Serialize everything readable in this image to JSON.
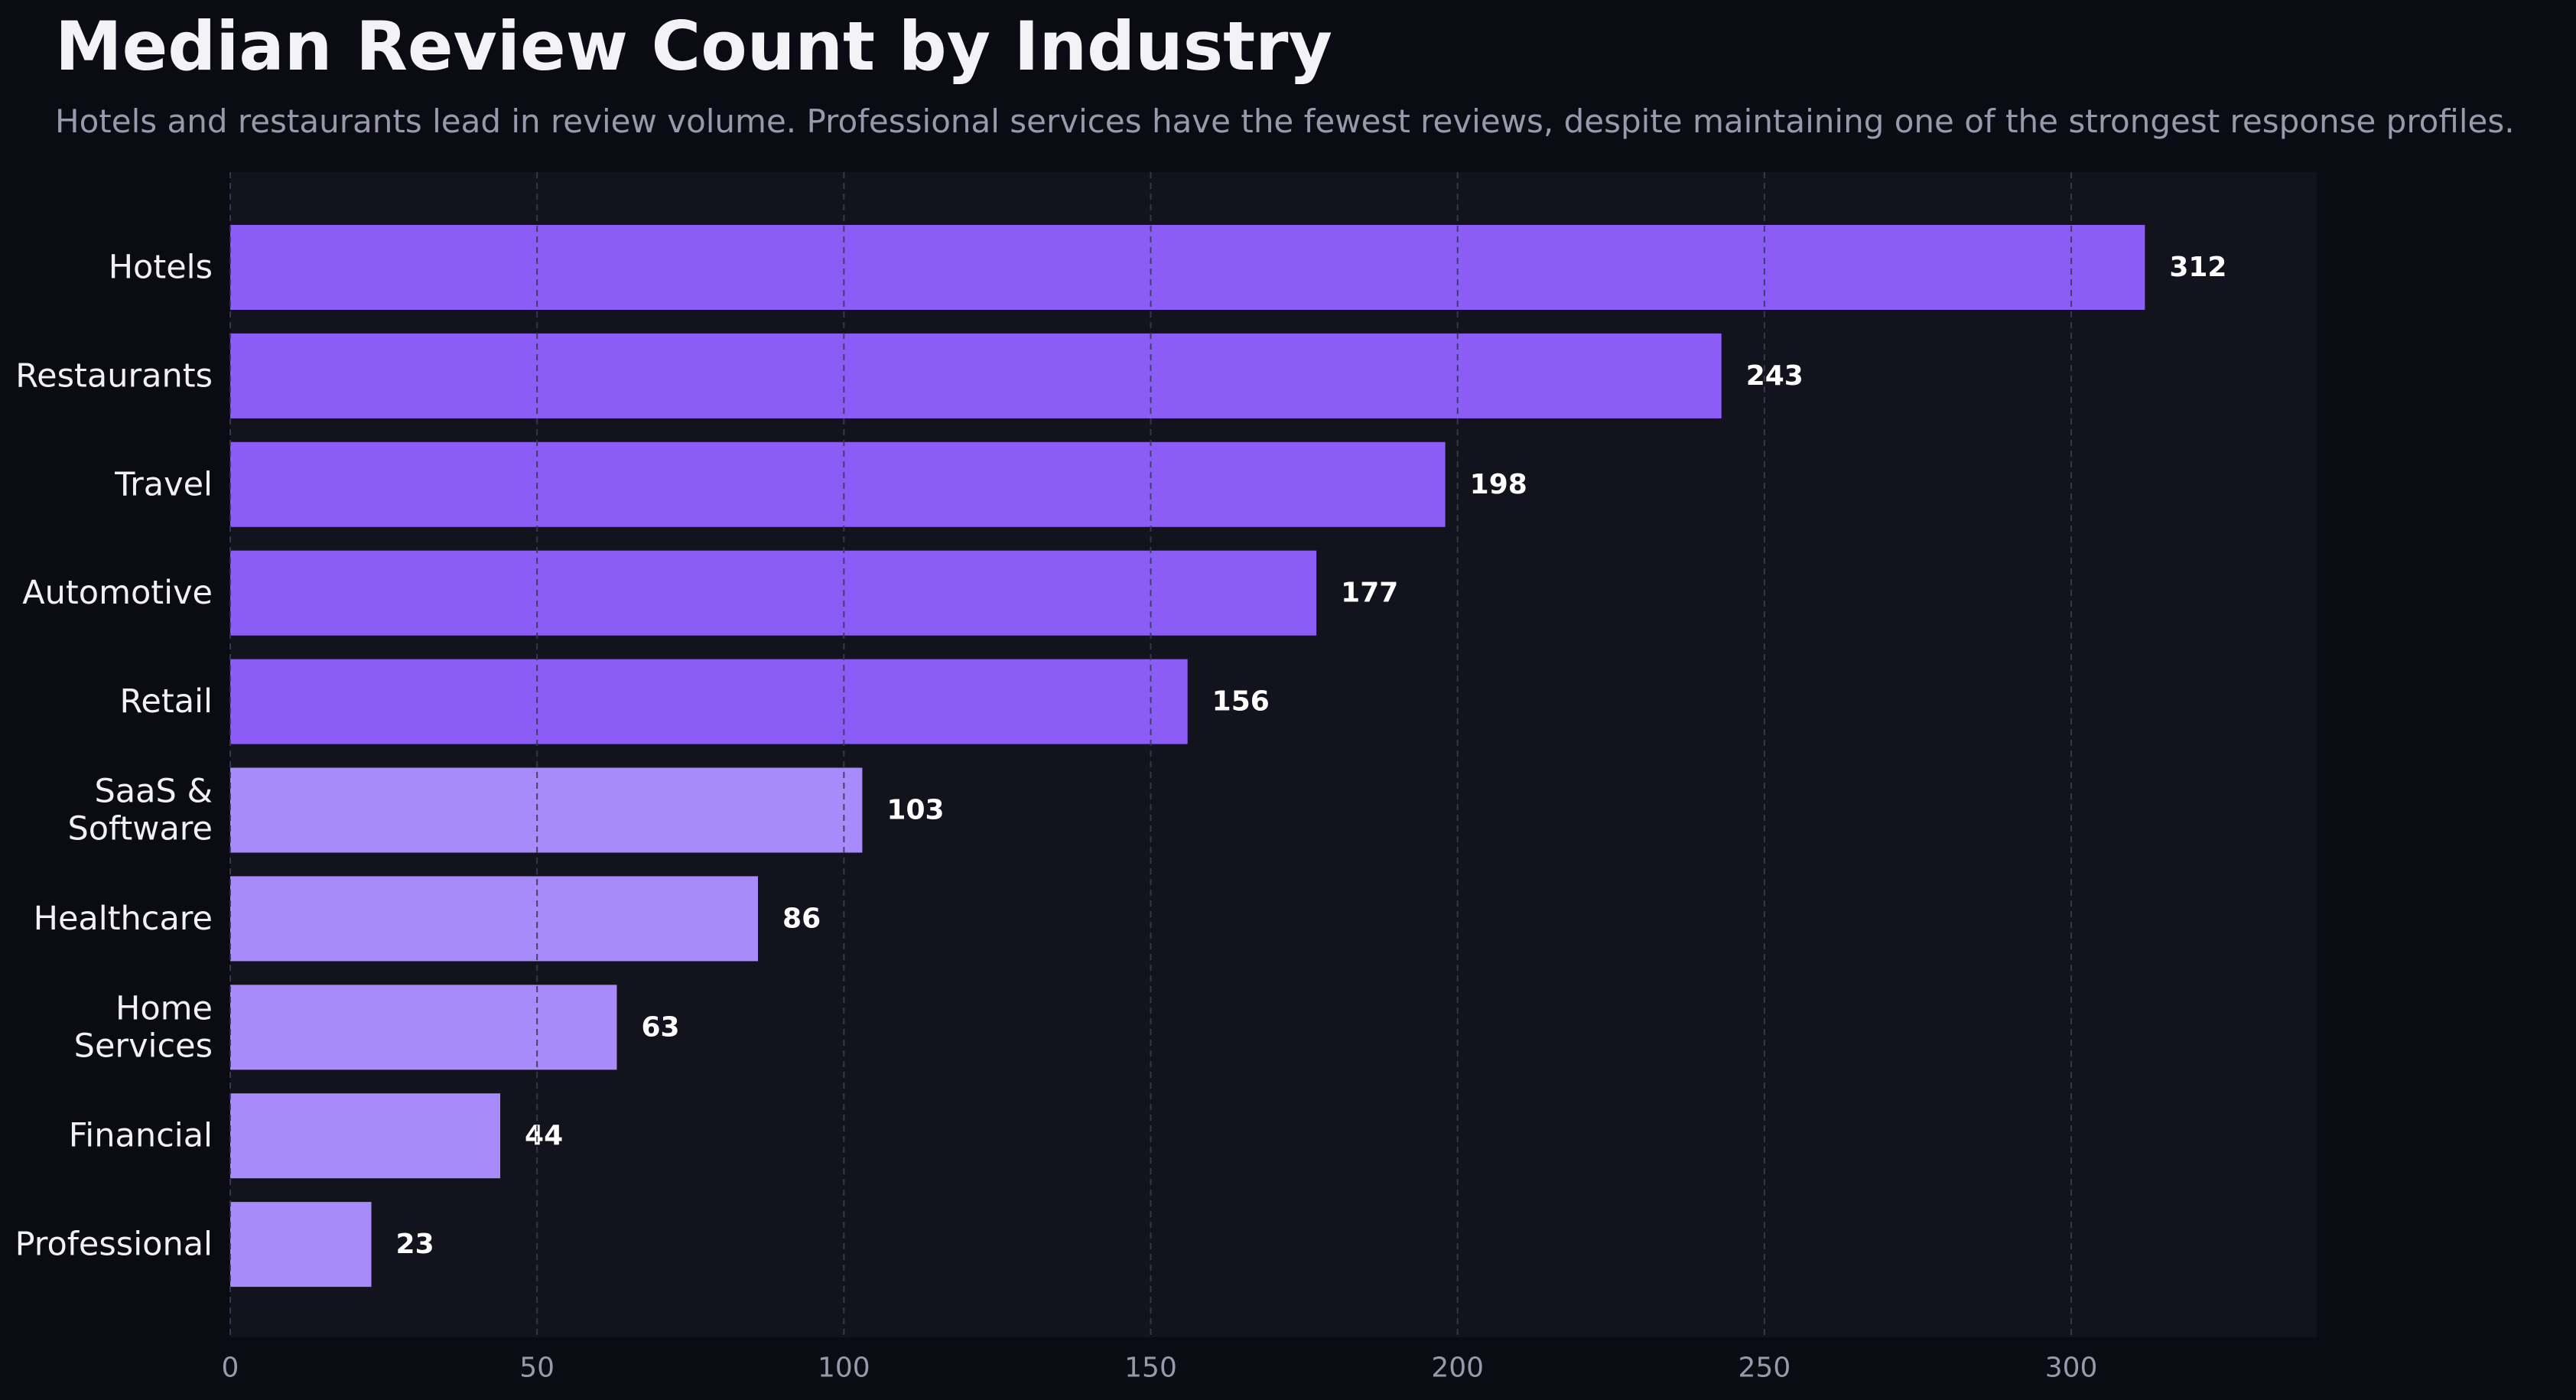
{
  "title": "Median Review Count by Industry",
  "subtitle": "Hotels and restaurants lead in review volume. Professional services have the fewest reviews, despite maintaining one of the strongest response profiles.",
  "colors": {
    "background": "#0b0b14",
    "plot_background": "#13131d",
    "bar_top": "#8b5cf6",
    "bar_rest": "#a78bfa",
    "grid": "#3c3a52",
    "value_label": "#ffffff",
    "category_label": "#f0f0f5",
    "tick_label": "#9a98ab"
  },
  "chart_data": {
    "type": "bar",
    "orientation": "horizontal",
    "categories": [
      [
        "Hotels"
      ],
      [
        "Restaurants"
      ],
      [
        "Travel"
      ],
      [
        "Automotive"
      ],
      [
        "Retail"
      ],
      [
        "SaaS &",
        "Software"
      ],
      [
        "Healthcare"
      ],
      [
        "Home",
        "Services"
      ],
      [
        "Financial"
      ],
      [
        "Professional"
      ]
    ],
    "values": [
      312,
      243,
      198,
      177,
      156,
      103,
      86,
      63,
      44,
      23
    ],
    "highlight_top_n": 5,
    "xlim": [
      0,
      340
    ],
    "xticks": [
      0,
      50,
      100,
      150,
      200,
      250,
      300
    ],
    "grid": "vertical dashed",
    "legend": "none"
  }
}
